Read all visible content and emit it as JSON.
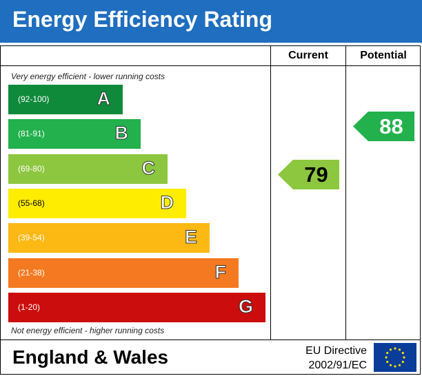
{
  "header": {
    "title": "Energy Efficiency Rating"
  },
  "columns": {
    "current": "Current",
    "potential": "Potential"
  },
  "notes": {
    "top": "Very energy efficient - lower running costs",
    "bottom": "Not energy efficient - higher running costs"
  },
  "colors": {
    "header_bg": "#1f6ebf",
    "band_A": "#0f8a3b",
    "band_B": "#22b14c",
    "band_C": "#8dc63f",
    "band_D": "#ffed00",
    "band_E": "#fcb813",
    "band_F": "#f47920",
    "band_G": "#cb0d0d"
  },
  "chart_data": {
    "type": "bar",
    "categories": [
      "A",
      "B",
      "C",
      "D",
      "E",
      "F",
      "G"
    ],
    "ranges": [
      "(92-100)",
      "(81-91)",
      "(69-80)",
      "(55-68)",
      "(39-54)",
      "(21-38)",
      "(1-20)"
    ],
    "series": [
      {
        "name": "Current",
        "value": 79,
        "band": "C"
      },
      {
        "name": "Potential",
        "value": 88,
        "band": "B"
      }
    ]
  },
  "footer": {
    "region": "England & Wales",
    "directive_line1": "EU Directive",
    "directive_line2": "2002/91/EC"
  }
}
